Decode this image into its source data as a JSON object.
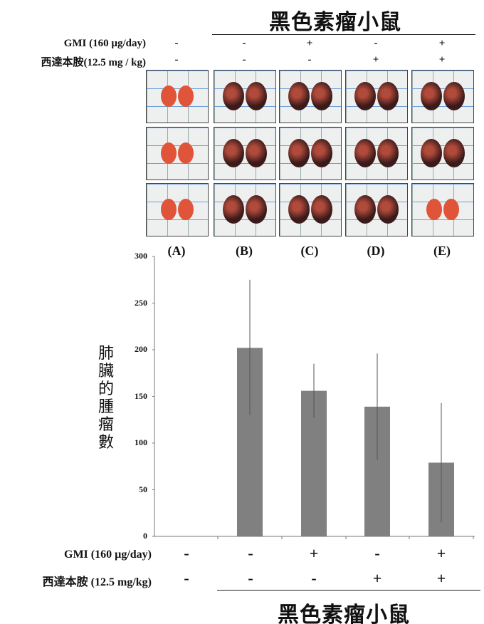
{
  "top": {
    "title": "黑色素瘤小鼠",
    "row1_label": "GMI (160 µg/day)",
    "row2_label": "西達本胺(12.5 mg / kg)",
    "row1_signs": [
      "-",
      "-",
      "+",
      "-",
      "+"
    ],
    "row2_signs": [
      "-",
      "-",
      "-",
      "+",
      "+"
    ]
  },
  "groups": [
    "(A)",
    "(B)",
    "(C)",
    "(D)",
    "(E)"
  ],
  "colors": {
    "bar": "#808080",
    "healthy_lung": "#e0553a",
    "tumor_lung": "#3a1a1a"
  },
  "chart_data": {
    "type": "bar",
    "categories": [
      "(A)",
      "(B)",
      "(C)",
      "(D)",
      "(E)"
    ],
    "values": [
      0,
      202,
      156,
      139,
      79
    ],
    "error_low": [
      0,
      130,
      127,
      82,
      15
    ],
    "error_high": [
      0,
      275,
      185,
      196,
      143
    ],
    "ylabel": "肺臟的腫瘤數",
    "ylim": [
      0,
      300
    ],
    "yticks": [
      "0",
      "50",
      "100",
      "150",
      "200",
      "250",
      "300"
    ],
    "grid": false
  },
  "bottom": {
    "row1_label": "GMI (160 µg/day)",
    "row2_label": "西達本胺 (12.5 mg/kg)",
    "row1_signs": [
      "-",
      "-",
      "+",
      "-",
      "+"
    ],
    "row2_signs": [
      "-",
      "-",
      "-",
      "+",
      "+"
    ],
    "title": "黑色素瘤小鼠"
  }
}
